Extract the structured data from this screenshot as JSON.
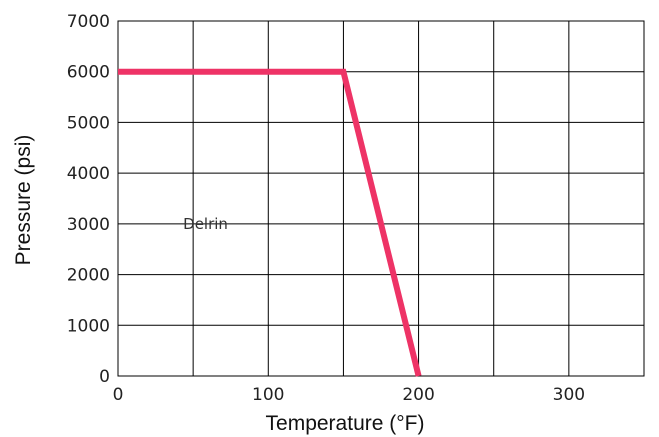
{
  "chart_data": {
    "type": "line",
    "title": "",
    "xlabel": "Temperature (°F)",
    "ylabel": "Pressure (psi)",
    "xlim": [
      0,
      350
    ],
    "ylim": [
      0,
      7000
    ],
    "x_ticks": [
      0,
      100,
      200,
      300
    ],
    "y_ticks": [
      0,
      1000,
      2000,
      3000,
      4000,
      5000,
      6000,
      7000
    ],
    "grid": true,
    "series": [
      {
        "name": "Delrin",
        "color": "#ee3366",
        "points": [
          [
            0,
            6000
          ],
          [
            150,
            6000
          ],
          [
            200,
            0
          ]
        ]
      }
    ],
    "annotations": [
      {
        "text": "Delrin",
        "x": 50,
        "y": 3000
      }
    ]
  }
}
